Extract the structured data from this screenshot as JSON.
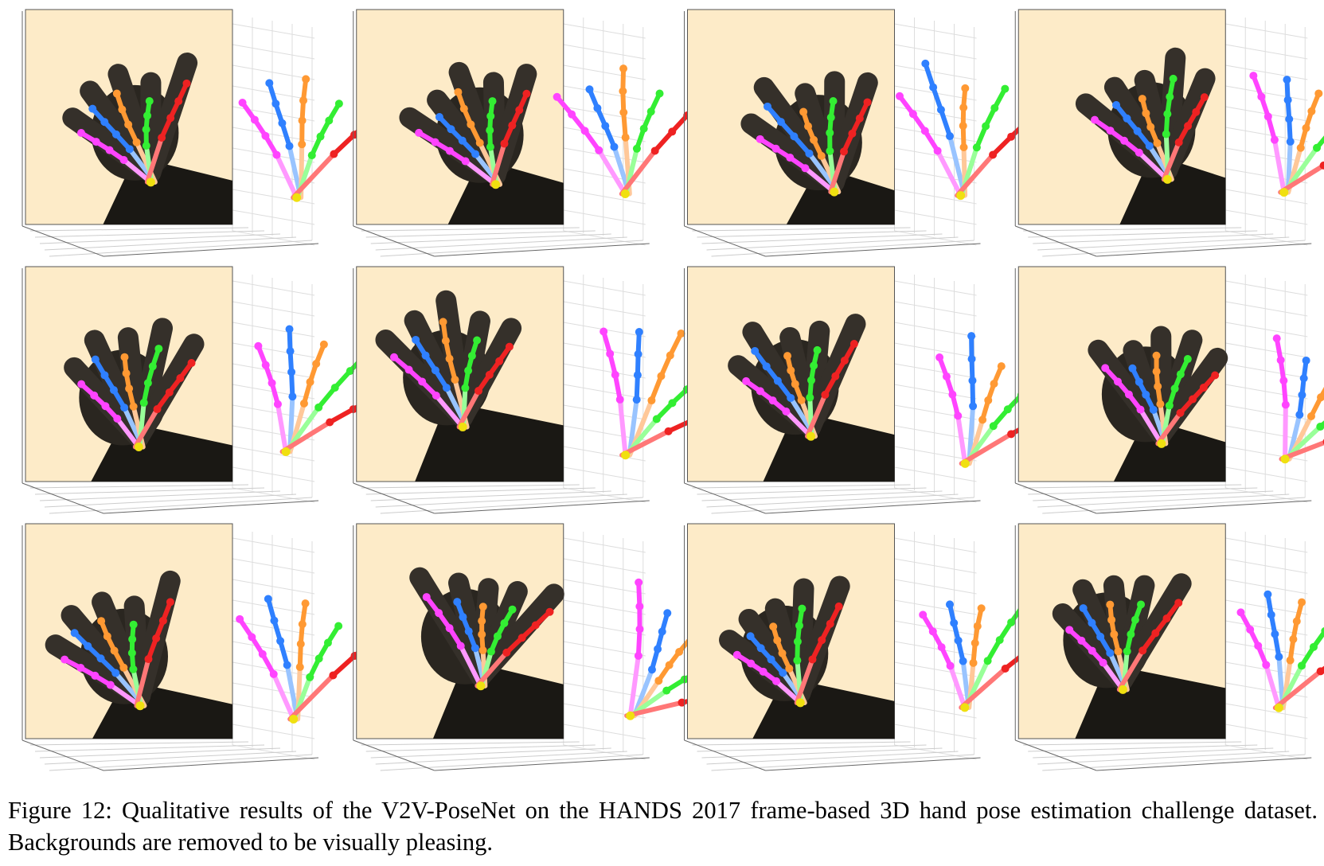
{
  "figure": {
    "caption": "Figure 12: Qualitative results of the V2V-PoseNet on the HANDS 2017 frame-based 3D hand pose estimation challenge dataset. Backgrounds are removed to be visually pleasing."
  }
}
